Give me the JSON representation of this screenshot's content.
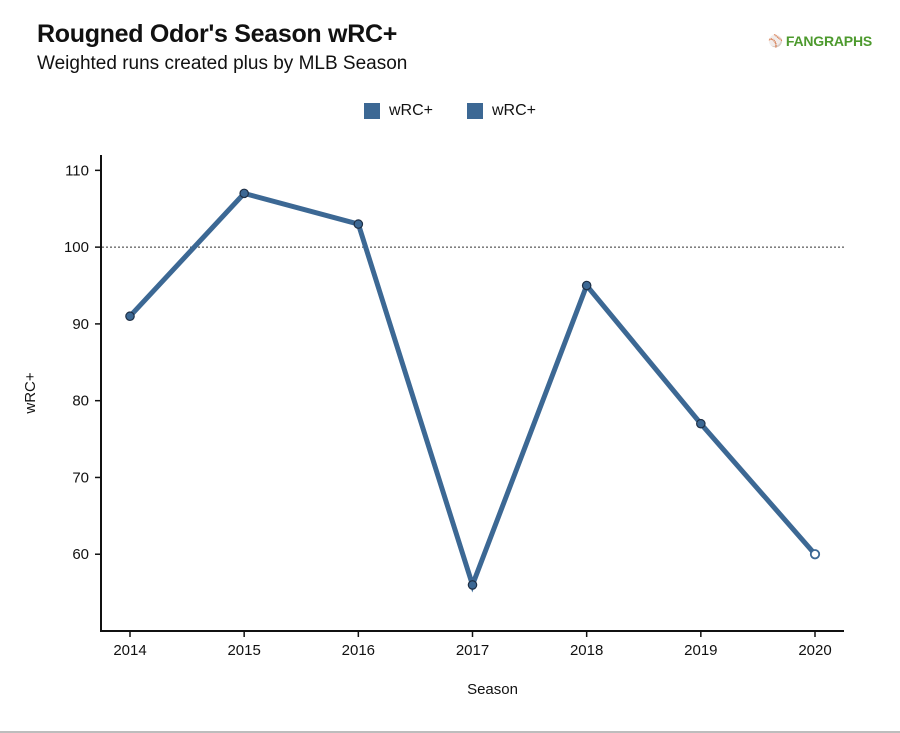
{
  "header": {
    "title": "Rougned Odor's Season wRC+",
    "subtitle": "Weighted runs created plus by MLB Season",
    "logo_text": "FANGRAPHS",
    "logo_icon": "fangraphs-player-icon",
    "logo_color": "#4d9a2e"
  },
  "legend": {
    "items": [
      {
        "label": "wRC+",
        "color": "#3c6894"
      },
      {
        "label": "wRC+",
        "color": "#3c6894"
      }
    ]
  },
  "chart_data": {
    "type": "line",
    "title": "Rougned Odor's Season wRC+",
    "subtitle": "Weighted runs created plus by MLB Season",
    "xlabel": "Season",
    "ylabel": "wRC+",
    "x": [
      "2014",
      "2015",
      "2016",
      "2017",
      "2018",
      "2019",
      "2020"
    ],
    "series": [
      {
        "name": "wRC+",
        "color": "#3c6894",
        "values": [
          91,
          107,
          103,
          56,
          95,
          77,
          60
        ],
        "hollow_last_point": true
      }
    ],
    "ylim": [
      50,
      112
    ],
    "yticks": [
      60,
      70,
      80,
      90,
      100,
      110
    ],
    "reference_line": {
      "y": 100,
      "style": "dotted"
    },
    "grid": false,
    "legend_position": "top-center"
  }
}
